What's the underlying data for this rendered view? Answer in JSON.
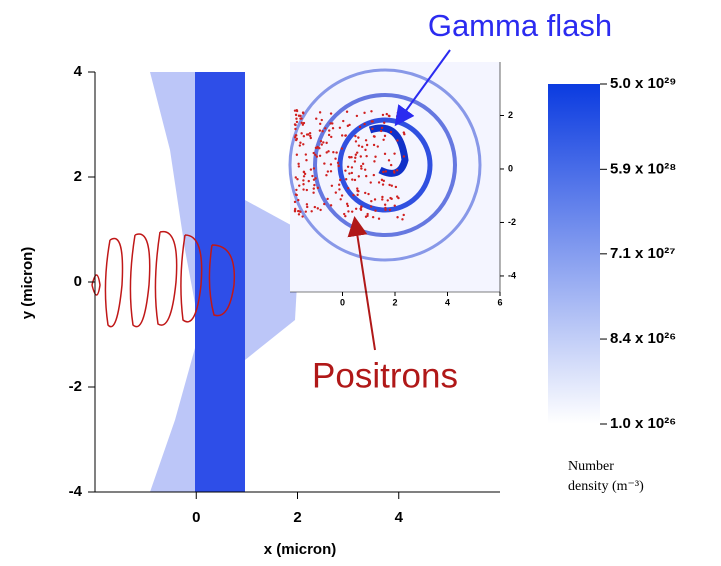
{
  "chart_data": {
    "type": "density",
    "x_label": "x (micron)",
    "y_label": "y (micron)",
    "xlim": [
      -2,
      6
    ],
    "ylim": [
      -4,
      4
    ],
    "xticks": [
      0,
      2,
      4
    ],
    "yticks": [
      -4,
      -2,
      0,
      2,
      4
    ],
    "inset": {
      "xlim": [
        -2,
        6
      ],
      "ylim": [
        -4.6,
        4
      ],
      "xticks": [
        0,
        2,
        4,
        6
      ],
      "yticks": [
        -4,
        -2,
        0,
        2
      ]
    },
    "colorbar": {
      "title": [
        "Number",
        "density (m⁻³)"
      ],
      "scale": "log",
      "color": "#0b3be0",
      "lim": [
        1e+26,
        5e+29
      ],
      "ticks": [
        {
          "value": 5e+29,
          "label": "5.0 x 10²⁹"
        },
        {
          "value": 5.9e+28,
          "label": "5.9 x 10²⁸"
        },
        {
          "value": 7.1e+27,
          "label": "7.1 x 10²⁷"
        },
        {
          "value": 8.4e+26,
          "label": "8.4 x 10²⁶"
        },
        {
          "value": 1e+26,
          "label": "1.0 x 10²⁶"
        }
      ]
    },
    "annotations": [
      {
        "text": "Gamma flash",
        "color": "#2b2bf0"
      },
      {
        "text": "Positrons",
        "color": "#b01818"
      }
    ]
  }
}
